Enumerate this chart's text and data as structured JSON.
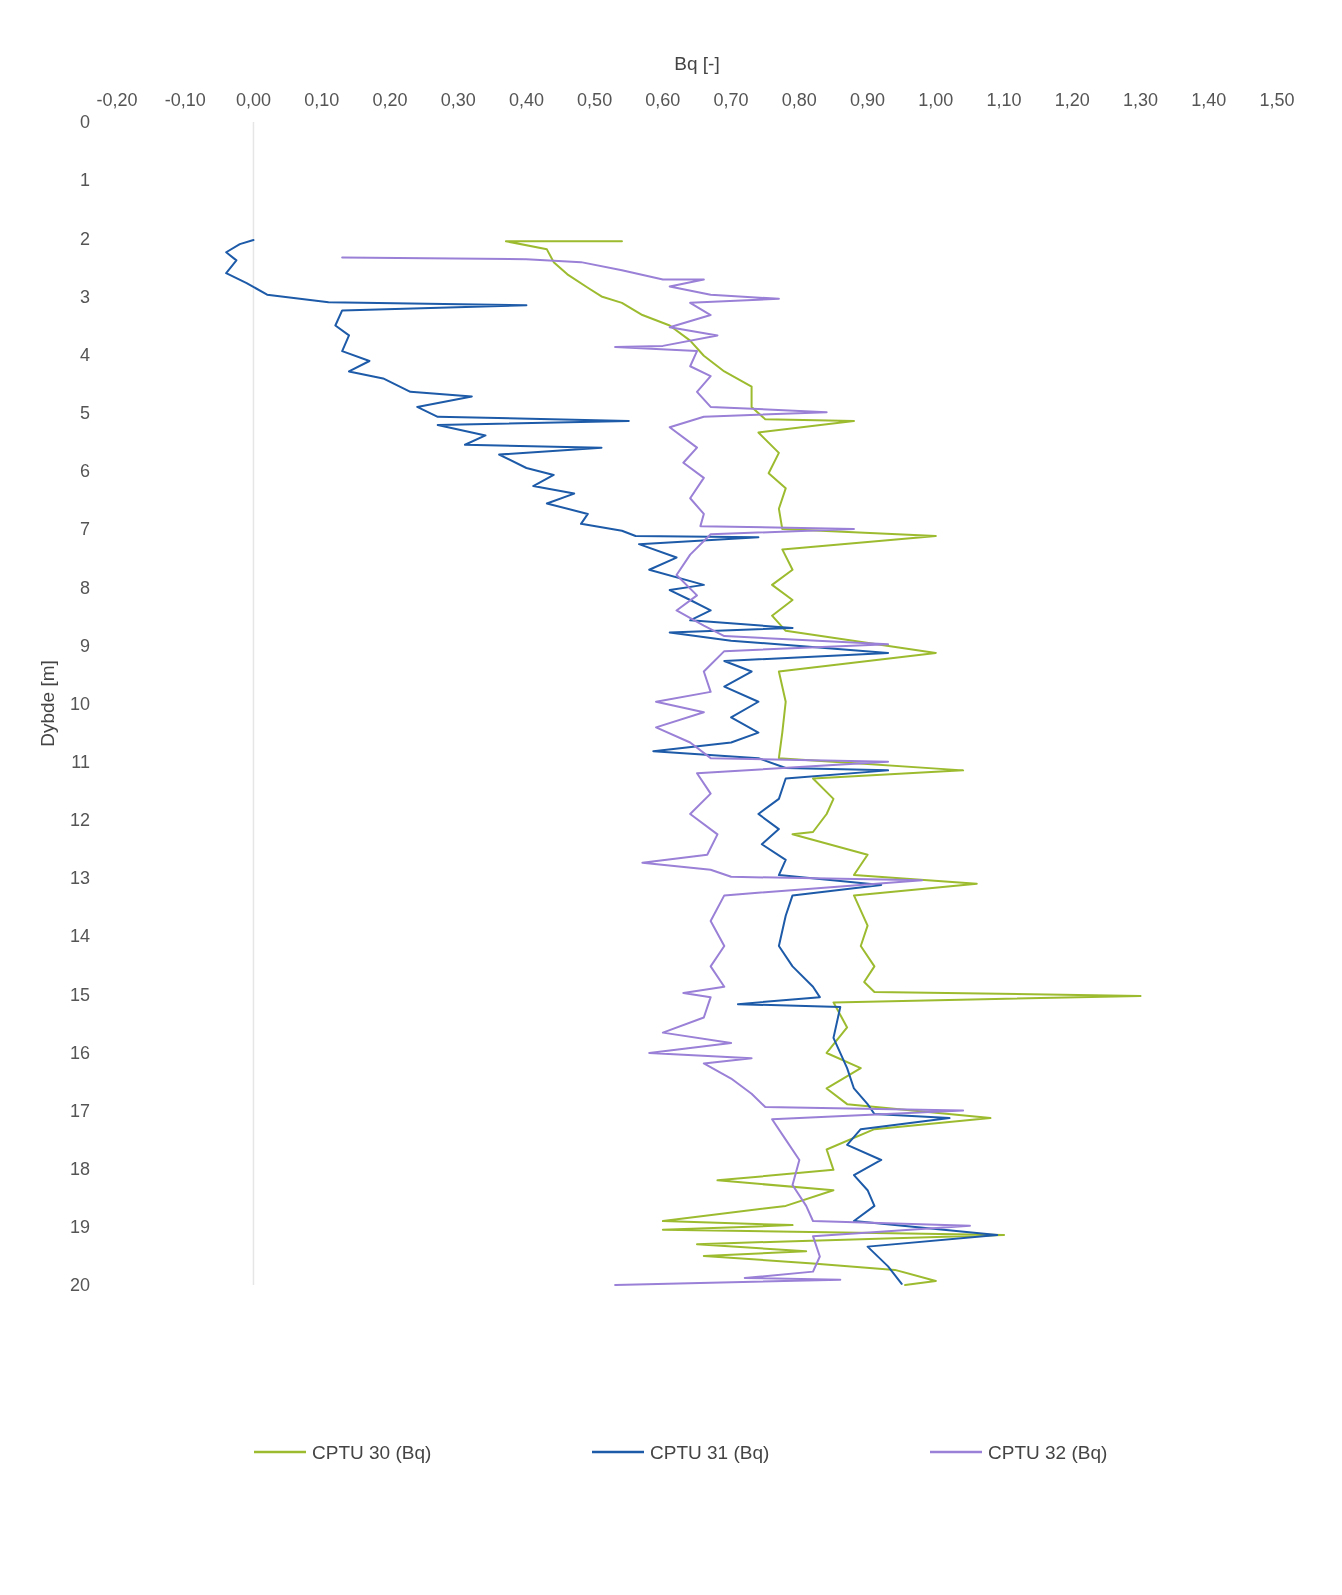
{
  "chart_data": {
    "type": "line",
    "xlabel": "Bq [-]",
    "ylabel": "Dybde [m]",
    "xlim": [
      -0.2,
      1.5
    ],
    "ylim": [
      20,
      0
    ],
    "xticks": [
      {
        "value": -0.2,
        "label": "-0,20"
      },
      {
        "value": -0.1,
        "label": "-0,10"
      },
      {
        "value": 0,
        "label": "0,00"
      },
      {
        "value": 0.1,
        "label": "0,10"
      },
      {
        "value": 0.2,
        "label": "0,20"
      },
      {
        "value": 0.3,
        "label": "0,30"
      },
      {
        "value": 0.4,
        "label": "0,40"
      },
      {
        "value": 0.5,
        "label": "0,50"
      },
      {
        "value": 0.6,
        "label": "0,60"
      },
      {
        "value": 0.7,
        "label": "0,70"
      },
      {
        "value": 0.8,
        "label": "0,80"
      },
      {
        "value": 0.9,
        "label": "0,90"
      },
      {
        "value": 1.0,
        "label": "1,00"
      },
      {
        "value": 1.1,
        "label": "1,10"
      },
      {
        "value": 1.2,
        "label": "1,20"
      },
      {
        "value": 1.3,
        "label": "1,30"
      },
      {
        "value": 1.4,
        "label": "1,40"
      },
      {
        "value": 1.5,
        "label": "1,50"
      }
    ],
    "yticks": [
      0,
      1,
      2,
      3,
      4,
      5,
      6,
      7,
      8,
      9,
      10,
      11,
      12,
      13,
      14,
      15,
      16,
      17,
      18,
      19,
      20
    ],
    "legend": "bottom",
    "series": [
      {
        "name": "CPTU 30 (Bq)",
        "color": "#9dbb2f",
        "x": [
          0.54,
          0.37,
          0.43,
          0.44,
          0.46,
          0.49,
          0.51,
          0.54,
          0.57,
          0.61,
          0.64,
          0.66,
          0.69,
          0.73,
          0.73,
          0.75,
          0.88,
          0.74,
          0.77,
          0.755,
          0.78,
          0.77,
          0.775,
          1.0,
          0.775,
          0.79,
          0.76,
          0.79,
          0.76,
          0.78,
          1.0,
          0.77,
          0.78,
          0.775,
          0.77,
          1.04,
          0.82,
          0.85,
          0.84,
          0.82,
          0.79,
          0.9,
          0.88,
          1.06,
          0.88,
          0.9,
          0.89,
          0.91,
          0.895,
          0.91,
          1.3,
          0.85,
          0.87,
          0.84,
          0.89,
          0.84,
          0.87,
          1.08,
          0.91,
          0.84,
          0.85,
          0.68,
          0.85,
          0.78,
          0.6,
          0.79,
          0.6,
          1.1,
          0.78,
          0.65,
          0.81,
          0.66,
          0.82,
          0.94,
          1.0,
          0.955
        ],
        "values": [
          2.05,
          2.05,
          2.19,
          2.41,
          2.62,
          2.85,
          3.0,
          3.11,
          3.32,
          3.5,
          3.76,
          4.02,
          4.29,
          4.55,
          4.9,
          5.11,
          5.14,
          5.34,
          5.69,
          6.04,
          6.3,
          6.65,
          7.0,
          7.12,
          7.35,
          7.7,
          7.96,
          8.22,
          8.49,
          8.75,
          9.13,
          9.45,
          9.97,
          10.5,
          10.94,
          11.15,
          11.29,
          11.64,
          11.9,
          12.21,
          12.25,
          12.6,
          12.95,
          13.1,
          13.3,
          13.82,
          14.17,
          14.52,
          14.79,
          14.96,
          15.03,
          15.14,
          15.57,
          16.01,
          16.27,
          16.62,
          16.89,
          17.13,
          17.32,
          17.67,
          18.02,
          18.2,
          18.37,
          18.64,
          18.9,
          18.97,
          19.05,
          19.14,
          19.25,
          19.3,
          19.42,
          19.5,
          19.63,
          19.74,
          19.93,
          20.0
        ]
      },
      {
        "name": "CPTU 31 (Bq)",
        "color": "#1d5aa8",
        "x": [
          0.0,
          -0.02,
          -0.04,
          -0.025,
          -0.04,
          -0.01,
          0.02,
          0.11,
          0.4,
          0.13,
          0.12,
          0.14,
          0.13,
          0.17,
          0.14,
          0.19,
          0.23,
          0.32,
          0.24,
          0.27,
          0.55,
          0.27,
          0.34,
          0.31,
          0.51,
          0.36,
          0.4,
          0.44,
          0.41,
          0.47,
          0.43,
          0.49,
          0.48,
          0.54,
          0.56,
          0.74,
          0.565,
          0.62,
          0.58,
          0.66,
          0.61,
          0.64,
          0.67,
          0.64,
          0.79,
          0.61,
          0.7,
          0.93,
          0.69,
          0.73,
          0.69,
          0.74,
          0.7,
          0.74,
          0.7,
          0.586,
          0.74,
          0.78,
          0.93,
          0.78,
          0.77,
          0.74,
          0.77,
          0.745,
          0.78,
          0.77,
          0.92,
          0.79,
          0.78,
          0.77,
          0.79,
          0.82,
          0.83,
          0.71,
          0.86,
          0.85,
          0.87,
          0.88,
          0.9,
          0.91,
          1.02,
          0.89,
          0.87,
          0.92,
          0.88,
          0.9,
          0.91,
          0.88,
          1.09,
          0.9,
          0.93,
          0.95
        ],
        "values": [
          2.03,
          2.1,
          2.24,
          2.38,
          2.6,
          2.77,
          2.97,
          3.1,
          3.15,
          3.24,
          3.5,
          3.67,
          3.94,
          4.11,
          4.29,
          4.41,
          4.64,
          4.72,
          4.9,
          5.07,
          5.14,
          5.21,
          5.39,
          5.55,
          5.6,
          5.72,
          5.95,
          6.07,
          6.26,
          6.39,
          6.56,
          6.74,
          6.91,
          7.03,
          7.12,
          7.14,
          7.26,
          7.49,
          7.7,
          7.96,
          8.05,
          8.22,
          8.4,
          8.57,
          8.7,
          8.78,
          8.92,
          9.13,
          9.27,
          9.45,
          9.71,
          9.97,
          10.24,
          10.5,
          10.67,
          10.82,
          10.94,
          11.11,
          11.15,
          11.29,
          11.64,
          11.9,
          12.16,
          12.42,
          12.69,
          12.95,
          13.12,
          13.3,
          13.65,
          14.17,
          14.52,
          14.87,
          15.05,
          15.17,
          15.22,
          15.75,
          16.27,
          16.62,
          16.89,
          17.06,
          17.13,
          17.32,
          17.59,
          17.85,
          18.11,
          18.37,
          18.64,
          18.9,
          19.14,
          19.34,
          19.68,
          19.98
        ]
      },
      {
        "name": "CPTU 32 (Bq)",
        "color": "#9a80d6",
        "x": [
          0.13,
          0.4,
          0.48,
          0.54,
          0.6,
          0.66,
          0.61,
          0.67,
          0.77,
          0.64,
          0.67,
          0.61,
          0.68,
          0.6,
          0.53,
          0.65,
          0.64,
          0.67,
          0.65,
          0.67,
          0.84,
          0.66,
          0.61,
          0.65,
          0.63,
          0.66,
          0.64,
          0.66,
          0.655,
          0.88,
          0.67,
          0.64,
          0.62,
          0.65,
          0.62,
          0.66,
          0.69,
          0.93,
          0.69,
          0.66,
          0.67,
          0.59,
          0.66,
          0.59,
          0.64,
          0.67,
          0.93,
          0.65,
          0.67,
          0.64,
          0.68,
          0.665,
          0.57,
          0.67,
          0.7,
          0.98,
          0.69,
          0.67,
          0.69,
          0.67,
          0.69,
          0.63,
          0.67,
          0.66,
          0.6,
          0.7,
          0.58,
          0.73,
          0.66,
          0.7,
          0.73,
          0.75,
          1.04,
          0.76,
          0.78,
          0.8,
          0.79,
          0.81,
          0.82,
          1.05,
          0.82,
          0.83,
          0.82,
          0.72,
          0.86,
          0.53
        ],
        "values": [
          2.33,
          2.36,
          2.41,
          2.55,
          2.71,
          2.71,
          2.83,
          2.97,
          3.04,
          3.11,
          3.32,
          3.53,
          3.67,
          3.85,
          3.87,
          3.94,
          4.2,
          4.37,
          4.64,
          4.9,
          4.99,
          5.07,
          5.25,
          5.6,
          5.86,
          6.12,
          6.47,
          6.74,
          6.95,
          7.0,
          7.09,
          7.44,
          7.79,
          8.14,
          8.4,
          8.66,
          8.84,
          8.98,
          9.1,
          9.45,
          9.8,
          9.97,
          10.15,
          10.41,
          10.67,
          10.94,
          11.0,
          11.2,
          11.55,
          11.9,
          12.25,
          12.6,
          12.74,
          12.86,
          12.98,
          13.04,
          13.3,
          13.74,
          14.17,
          14.52,
          14.87,
          14.98,
          15.05,
          15.4,
          15.66,
          15.84,
          16.01,
          16.1,
          16.19,
          16.45,
          16.71,
          16.94,
          17.0,
          17.15,
          17.5,
          17.85,
          18.28,
          18.64,
          18.9,
          18.98,
          19.16,
          19.51,
          19.77,
          19.88,
          19.91,
          20.0
        ]
      }
    ]
  }
}
